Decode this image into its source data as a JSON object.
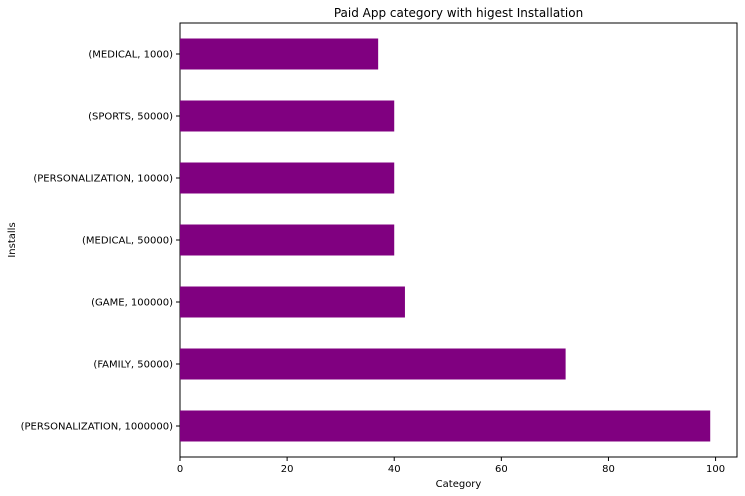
{
  "chart_data": {
    "type": "bar",
    "orientation": "horizontal",
    "title": "Paid App category with higest Installation",
    "xlabel": "Category",
    "ylabel": "Installs",
    "categories": [
      "(PERSONALIZATION, 1000000)",
      "(FAMILY, 50000)",
      "(GAME, 100000)",
      "(MEDICAL, 50000)",
      "(PERSONALIZATION, 10000)",
      "(SPORTS, 50000)",
      "(MEDICAL, 1000)"
    ],
    "values": [
      99,
      72,
      42,
      40,
      40,
      40,
      37
    ],
    "xlim": [
      0,
      104
    ],
    "xticks": [
      0,
      20,
      40,
      60,
      80,
      100
    ],
    "bar_color": "#800080",
    "grid": false,
    "legend": "none"
  }
}
